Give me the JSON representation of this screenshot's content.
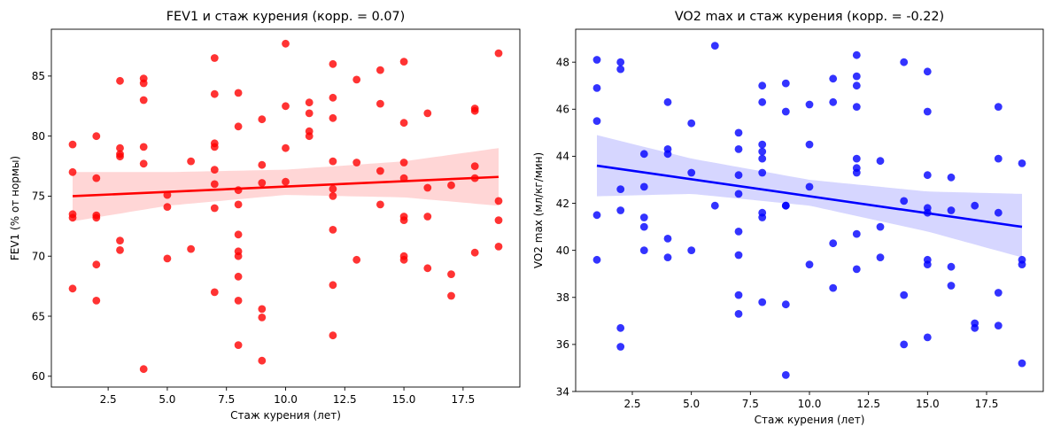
{
  "chart_data": [
    {
      "type": "scatter",
      "title": "FEV1 и стаж курения (корр. = 0.07)",
      "xlabel": "Стаж курения (лет)",
      "ylabel": "FEV1 (% от нормы)",
      "xlim": [
        0.1,
        19.9
      ],
      "ylim": [
        59.1,
        88.9
      ],
      "xticks": [
        2.5,
        5.0,
        7.5,
        10.0,
        12.5,
        15.0,
        17.5
      ],
      "xtick_labels": [
        "2.5",
        "5.0",
        "7.5",
        "10.0",
        "12.5",
        "15.0",
        "17.5"
      ],
      "yticks": [
        60,
        65,
        70,
        75,
        80,
        85
      ],
      "ytick_labels": [
        "60",
        "65",
        "70",
        "75",
        "80",
        "85"
      ],
      "color": "#ff0000",
      "band_color": "#ffd6d6",
      "regression": {
        "x": [
          1,
          19
        ],
        "y": [
          75.0,
          76.6
        ]
      },
      "band": {
        "x": [
          1,
          5,
          10,
          15,
          19
        ],
        "lower": [
          72.9,
          74.2,
          75.1,
          74.9,
          74.2
        ],
        "upper": [
          77.0,
          77.0,
          77.2,
          77.9,
          79.0
        ]
      },
      "points": [
        [
          1,
          79.3
        ],
        [
          1,
          77.0
        ],
        [
          1,
          73.5
        ],
        [
          1,
          73.2
        ],
        [
          1,
          67.3
        ],
        [
          2,
          80.0
        ],
        [
          2,
          76.5
        ],
        [
          2,
          73.4
        ],
        [
          2,
          73.2
        ],
        [
          2,
          69.3
        ],
        [
          2,
          66.3
        ],
        [
          3,
          84.6
        ],
        [
          3,
          79.0
        ],
        [
          3,
          78.5
        ],
        [
          3,
          78.3
        ],
        [
          3,
          71.3
        ],
        [
          3,
          70.5
        ],
        [
          4,
          84.8
        ],
        [
          4,
          84.4
        ],
        [
          4,
          83.0
        ],
        [
          4,
          79.1
        ],
        [
          4,
          77.7
        ],
        [
          4,
          60.6
        ],
        [
          5,
          75.1
        ],
        [
          5,
          74.1
        ],
        [
          5,
          69.8
        ],
        [
          6,
          77.9
        ],
        [
          6,
          70.6
        ],
        [
          7,
          86.5
        ],
        [
          7,
          83.5
        ],
        [
          7,
          79.4
        ],
        [
          7,
          79.1
        ],
        [
          7,
          77.2
        ],
        [
          7,
          76.0
        ],
        [
          7,
          74.0
        ],
        [
          7,
          67.0
        ],
        [
          8,
          83.6
        ],
        [
          8,
          80.8
        ],
        [
          8,
          75.5
        ],
        [
          8,
          74.3
        ],
        [
          8,
          71.8
        ],
        [
          8,
          70.4
        ],
        [
          8,
          70.0
        ],
        [
          8,
          68.3
        ],
        [
          8,
          66.3
        ],
        [
          8,
          62.6
        ],
        [
          9,
          81.4
        ],
        [
          9,
          77.6
        ],
        [
          9,
          76.1
        ],
        [
          9,
          65.6
        ],
        [
          9,
          64.9
        ],
        [
          9,
          61.3
        ],
        [
          10,
          87.7
        ],
        [
          10,
          82.5
        ],
        [
          10,
          79.0
        ],
        [
          10,
          76.2
        ],
        [
          11,
          82.8
        ],
        [
          11,
          81.9
        ],
        [
          11,
          80.4
        ],
        [
          11,
          80.0
        ],
        [
          12,
          86.0
        ],
        [
          12,
          83.2
        ],
        [
          12,
          81.5
        ],
        [
          12,
          77.9
        ],
        [
          12,
          75.6
        ],
        [
          12,
          75.0
        ],
        [
          12,
          72.2
        ],
        [
          12,
          67.6
        ],
        [
          12,
          63.4
        ],
        [
          13,
          84.7
        ],
        [
          13,
          77.8
        ],
        [
          13,
          69.7
        ],
        [
          14,
          85.5
        ],
        [
          14,
          82.7
        ],
        [
          14,
          77.1
        ],
        [
          14,
          74.3
        ],
        [
          15,
          86.2
        ],
        [
          15,
          81.1
        ],
        [
          15,
          77.8
        ],
        [
          15,
          76.5
        ],
        [
          15,
          73.3
        ],
        [
          15,
          73.0
        ],
        [
          15,
          70.0
        ],
        [
          15,
          69.7
        ],
        [
          16,
          81.9
        ],
        [
          16,
          75.7
        ],
        [
          16,
          73.3
        ],
        [
          16,
          69.0
        ],
        [
          17,
          75.9
        ],
        [
          17,
          68.5
        ],
        [
          17,
          66.7
        ],
        [
          18,
          82.3
        ],
        [
          18,
          82.1
        ],
        [
          18,
          77.5
        ],
        [
          18,
          76.5
        ],
        [
          18,
          70.3
        ],
        [
          19,
          86.9
        ],
        [
          19,
          74.6
        ],
        [
          19,
          73.0
        ],
        [
          19,
          70.8
        ]
      ]
    },
    {
      "type": "scatter",
      "title": "VO2 max и стаж курения (корр. = -0.22)",
      "xlabel": "Стаж курения (лет)",
      "ylabel": "VO2 max (мл/кг/мин)",
      "xlim": [
        0.1,
        19.9
      ],
      "ylim": [
        34.0,
        49.4
      ],
      "xticks": [
        2.5,
        5.0,
        7.5,
        10.0,
        12.5,
        15.0,
        17.5
      ],
      "xtick_labels": [
        "2.5",
        "5.0",
        "7.5",
        "10.0",
        "12.5",
        "15.0",
        "17.5"
      ],
      "yticks": [
        34,
        36,
        38,
        40,
        42,
        44,
        46,
        48
      ],
      "ytick_labels": [
        "34",
        "36",
        "38",
        "40",
        "42",
        "44",
        "46",
        "48"
      ],
      "color": "#0000ff",
      "band_color": "#d6d6ff",
      "regression": {
        "x": [
          1,
          19
        ],
        "y": [
          43.6,
          41.0
        ]
      },
      "band": {
        "x": [
          1,
          5,
          10,
          15,
          19
        ],
        "lower": [
          42.3,
          42.4,
          41.9,
          40.8,
          39.7
        ],
        "upper": [
          44.9,
          43.9,
          43.0,
          42.5,
          42.4
        ]
      },
      "points": [
        [
          1,
          48.1
        ],
        [
          1,
          46.9
        ],
        [
          1,
          45.5
        ],
        [
          1,
          41.5
        ],
        [
          1,
          39.6
        ],
        [
          2,
          48.0
        ],
        [
          2,
          47.7
        ],
        [
          2,
          42.6
        ],
        [
          2,
          41.7
        ],
        [
          2,
          36.7
        ],
        [
          2,
          35.9
        ],
        [
          3,
          44.1
        ],
        [
          3,
          42.7
        ],
        [
          3,
          41.4
        ],
        [
          3,
          41.0
        ],
        [
          3,
          40.0
        ],
        [
          4,
          46.3
        ],
        [
          4,
          44.3
        ],
        [
          4,
          44.1
        ],
        [
          4,
          40.5
        ],
        [
          4,
          39.7
        ],
        [
          5,
          45.4
        ],
        [
          5,
          43.3
        ],
        [
          5,
          40.0
        ],
        [
          6,
          48.7
        ],
        [
          6,
          41.9
        ],
        [
          7,
          45.0
        ],
        [
          7,
          44.3
        ],
        [
          7,
          43.2
        ],
        [
          7,
          42.4
        ],
        [
          7,
          40.8
        ],
        [
          7,
          39.8
        ],
        [
          7,
          38.1
        ],
        [
          7,
          37.3
        ],
        [
          8,
          47.0
        ],
        [
          8,
          46.3
        ],
        [
          8,
          44.5
        ],
        [
          8,
          44.2
        ],
        [
          8,
          43.9
        ],
        [
          8,
          43.3
        ],
        [
          8,
          41.6
        ],
        [
          8,
          41.4
        ],
        [
          8,
          37.8
        ],
        [
          9,
          47.1
        ],
        [
          9,
          45.9
        ],
        [
          9,
          41.9
        ],
        [
          9,
          41.9
        ],
        [
          9,
          37.7
        ],
        [
          9,
          34.7
        ],
        [
          10,
          46.2
        ],
        [
          10,
          44.5
        ],
        [
          10,
          42.7
        ],
        [
          10,
          39.4
        ],
        [
          11,
          47.3
        ],
        [
          11,
          46.3
        ],
        [
          11,
          40.3
        ],
        [
          11,
          38.4
        ],
        [
          12,
          48.3
        ],
        [
          12,
          47.4
        ],
        [
          12,
          47.0
        ],
        [
          12,
          46.1
        ],
        [
          12,
          43.9
        ],
        [
          12,
          43.5
        ],
        [
          12,
          43.3
        ],
        [
          12,
          40.7
        ],
        [
          12,
          39.2
        ],
        [
          13,
          43.8
        ],
        [
          13,
          41.0
        ],
        [
          13,
          39.7
        ],
        [
          14,
          48.0
        ],
        [
          14,
          42.1
        ],
        [
          14,
          38.1
        ],
        [
          14,
          36.0
        ],
        [
          15,
          47.6
        ],
        [
          15,
          45.9
        ],
        [
          15,
          43.2
        ],
        [
          15,
          41.8
        ],
        [
          15,
          41.6
        ],
        [
          15,
          39.6
        ],
        [
          15,
          39.4
        ],
        [
          15,
          36.3
        ],
        [
          16,
          43.1
        ],
        [
          16,
          41.7
        ],
        [
          16,
          39.3
        ],
        [
          16,
          38.5
        ],
        [
          17,
          41.9
        ],
        [
          17,
          36.9
        ],
        [
          17,
          36.7
        ],
        [
          18,
          46.1
        ],
        [
          18,
          43.9
        ],
        [
          18,
          41.6
        ],
        [
          18,
          38.2
        ],
        [
          18,
          36.8
        ],
        [
          19,
          43.7
        ],
        [
          19,
          39.6
        ],
        [
          19,
          39.4
        ],
        [
          19,
          35.2
        ]
      ]
    }
  ]
}
